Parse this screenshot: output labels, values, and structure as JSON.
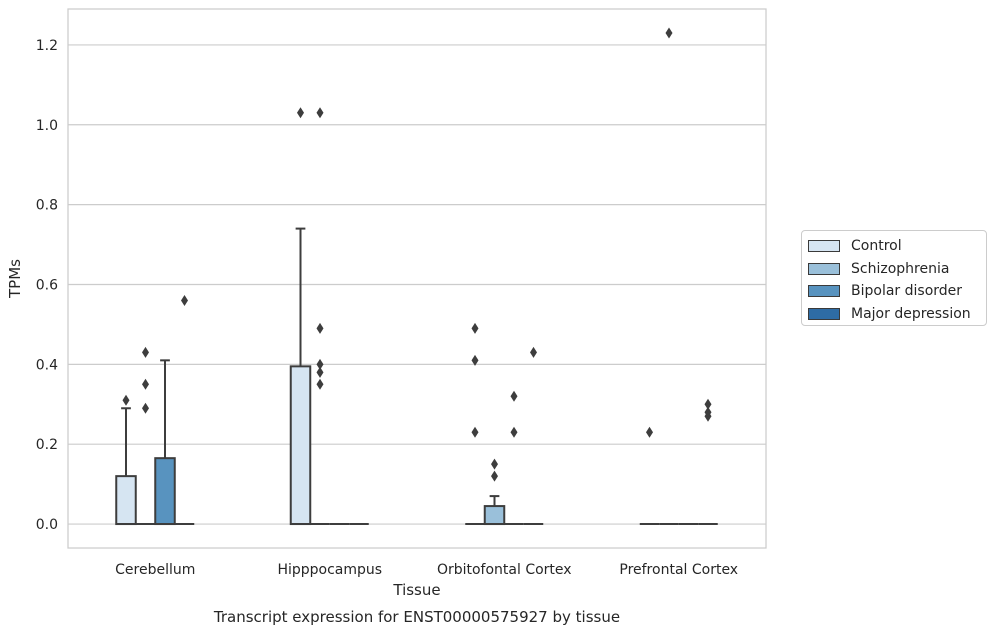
{
  "chart_data": {
    "type": "box",
    "title": "Transcript expression for ENST00000575927 by tissue",
    "xlabel": "Tissue",
    "ylabel": "TPMs",
    "ylim": [
      -0.06,
      1.29
    ],
    "yticks": [
      "0.0",
      "0.2",
      "0.4",
      "0.6",
      "0.8",
      "1.0",
      "1.2"
    ],
    "categories": [
      "Cerebellum",
      "Hipppocampus",
      "Orbitofontal Cortex",
      "Prefrontal Cortex"
    ],
    "grid": "horizontal",
    "legend_position": "right",
    "series": [
      {
        "name": "Control",
        "color": "#d6e5f2",
        "boxes": [
          {
            "q1": 0,
            "median": 0,
            "q3": 0.12,
            "whisker_low": 0,
            "whisker_high": 0.29,
            "outliers": [
              0.31
            ]
          },
          {
            "q1": 0,
            "median": 0,
            "q3": 0.395,
            "whisker_low": 0,
            "whisker_high": 0.74,
            "outliers": [
              1.03
            ]
          },
          {
            "q1": 0,
            "median": 0,
            "q3": 0,
            "whisker_low": 0,
            "whisker_high": 0,
            "outliers": [
              0.23,
              0.41,
              0.49
            ]
          },
          {
            "q1": 0,
            "median": 0,
            "q3": 0,
            "whisker_low": 0,
            "whisker_high": 0,
            "outliers": [
              0.23
            ]
          }
        ]
      },
      {
        "name": "Schizophrenia",
        "color": "#9ac0da",
        "boxes": [
          {
            "q1": 0,
            "median": 0,
            "q3": 0,
            "whisker_low": 0,
            "whisker_high": 0,
            "outliers": [
              0.29,
              0.35,
              0.43
            ]
          },
          {
            "q1": 0,
            "median": 0,
            "q3": 0,
            "whisker_low": 0,
            "whisker_high": 0,
            "outliers": [
              0.35,
              0.38,
              0.4,
              0.49,
              1.03
            ]
          },
          {
            "q1": 0,
            "median": 0,
            "q3": 0.045,
            "whisker_low": 0,
            "whisker_high": 0.07,
            "outliers": [
              0.12,
              0.15
            ]
          },
          {
            "q1": 0,
            "median": 0,
            "q3": 0,
            "whisker_low": 0,
            "whisker_high": 0,
            "outliers": [
              1.23
            ]
          }
        ]
      },
      {
        "name": "Bipolar disorder",
        "color": "#5893bf",
        "boxes": [
          {
            "q1": 0,
            "median": 0,
            "q3": 0.165,
            "whisker_low": 0,
            "whisker_high": 0.41,
            "outliers": []
          },
          {
            "q1": 0,
            "median": 0,
            "q3": 0,
            "whisker_low": 0,
            "whisker_high": 0,
            "outliers": []
          },
          {
            "q1": 0,
            "median": 0,
            "q3": 0,
            "whisker_low": 0,
            "whisker_high": 0,
            "outliers": [
              0.23,
              0.32
            ]
          },
          {
            "q1": 0,
            "median": 0,
            "q3": 0,
            "whisker_low": 0,
            "whisker_high": 0,
            "outliers": []
          }
        ]
      },
      {
        "name": "Major depression",
        "color": "#2e6ca5",
        "boxes": [
          {
            "q1": 0,
            "median": 0,
            "q3": 0,
            "whisker_low": 0,
            "whisker_high": 0,
            "outliers": [
              0.56
            ]
          },
          {
            "q1": 0,
            "median": 0,
            "q3": 0,
            "whisker_low": 0,
            "whisker_high": 0,
            "outliers": []
          },
          {
            "q1": 0,
            "median": 0,
            "q3": 0,
            "whisker_low": 0,
            "whisker_high": 0,
            "outliers": [
              0.43
            ]
          },
          {
            "q1": 0,
            "median": 0,
            "q3": 0,
            "whisker_low": 0,
            "whisker_high": 0,
            "outliers": [
              0.27,
              0.28,
              0.3
            ]
          }
        ]
      }
    ]
  }
}
